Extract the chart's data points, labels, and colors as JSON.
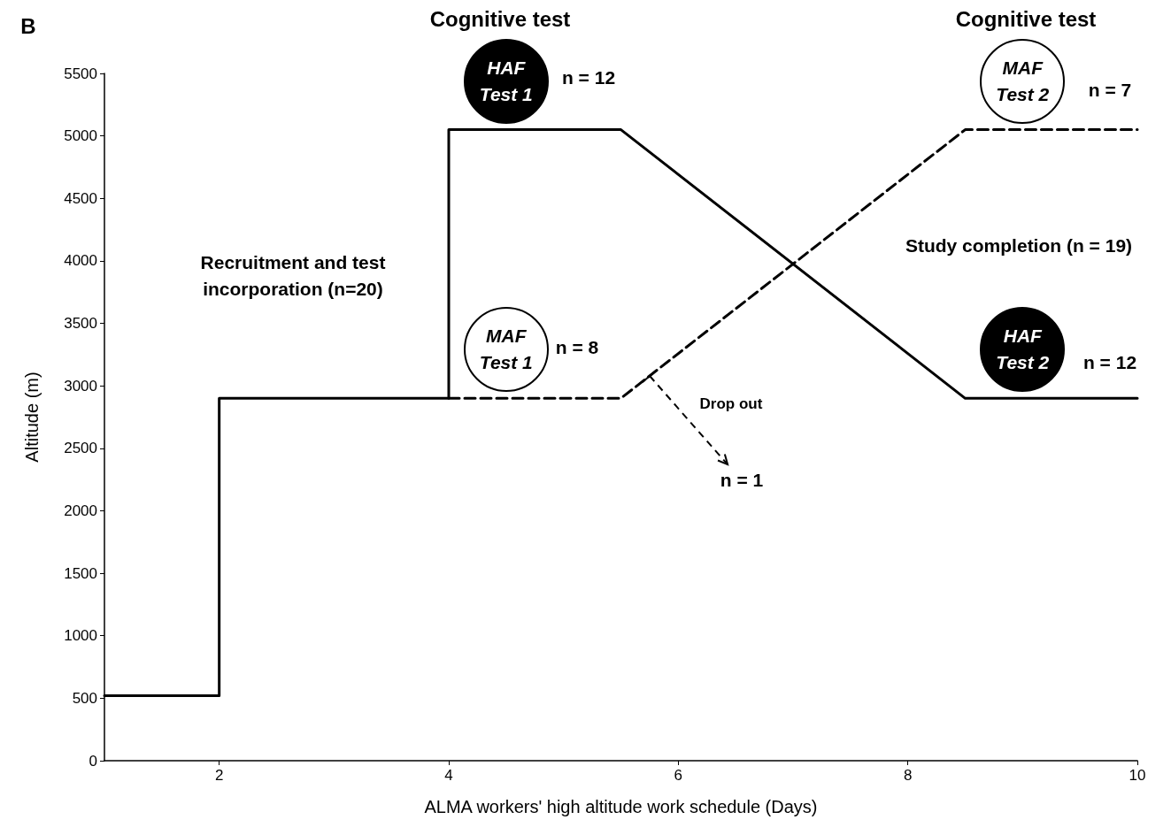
{
  "chart_data": {
    "type": "line",
    "xlabel": "ALMA workers' high altitude work schedule (Days)",
    "ylabel": "Altitude (m)",
    "xlim": [
      1,
      10
    ],
    "xticks": [
      2,
      4,
      6,
      8,
      10
    ],
    "ylim": [
      0,
      5500
    ],
    "yticks": [
      0,
      500,
      1000,
      1500,
      2000,
      2500,
      3000,
      3500,
      4000,
      4500,
      5000,
      5500
    ],
    "grid": false,
    "marker": "none",
    "series": [
      {
        "color": "#000000",
        "line_style": "solid",
        "x": [
          1,
          2,
          2,
          4,
          4,
          5.5,
          8.5,
          10
        ],
        "values": [
          520,
          520,
          2900,
          2900,
          5050,
          5050,
          2900,
          2900
        ]
      },
      {
        "color": "#000000",
        "line_style": "dashed",
        "x": [
          4,
          5.5,
          8.5,
          10
        ],
        "values": [
          2900,
          2900,
          5050,
          5050
        ]
      }
    ],
    "annotations": [
      "B",
      "Cognitive test",
      "Cognitive test",
      {
        "text": "HAF Test 1",
        "x": 4.5,
        "y": 5050
      },
      "n = 12",
      {
        "text": "MAF Test 1",
        "x": 4.5,
        "y": 2900
      },
      "n = 8",
      "Recruitment and test incorporation (n=20)",
      "Study completion (n = 19)",
      {
        "text": "HAF Test 2",
        "x": 9,
        "y": 2900
      },
      "n = 12",
      {
        "text": "MAF Test 2",
        "x": 9,
        "y": 5050
      },
      "n = 7",
      "Drop out",
      {
        "text": "n = 1",
        "x": 5.75,
        "y": 3080
      }
    ]
  }
}
